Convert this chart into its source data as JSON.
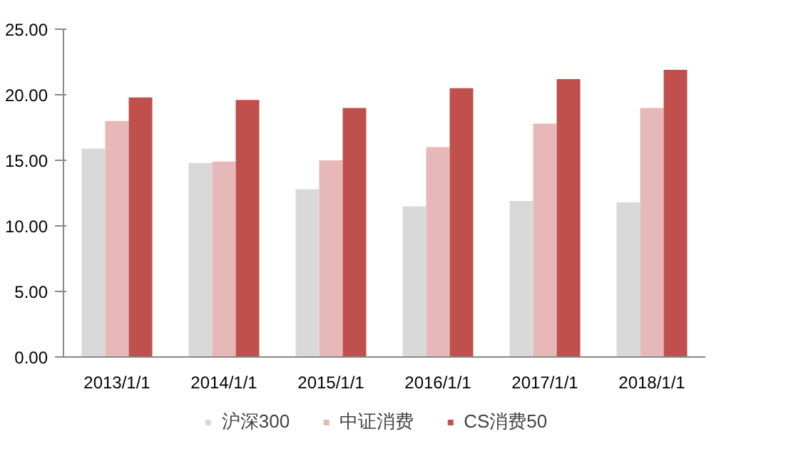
{
  "chart_data": {
    "type": "bar",
    "categories": [
      "2013/1/1",
      "2014/1/1",
      "2015/1/1",
      "2016/1/1",
      "2017/1/1",
      "2018/1/1"
    ],
    "series": [
      {
        "name": "沪深300",
        "color": "#d9d9d9",
        "values": [
          15.9,
          14.8,
          12.8,
          11.5,
          11.9,
          11.8
        ]
      },
      {
        "name": "中证消费",
        "color": "#e6b9b8",
        "values": [
          18.0,
          14.9,
          15.0,
          16.0,
          17.8,
          19.0
        ]
      },
      {
        "name": "CS消费50",
        "color": "#c0504d",
        "values": [
          19.8,
          19.6,
          19.0,
          20.5,
          21.2,
          21.9
        ]
      }
    ],
    "ylim": [
      0,
      25
    ],
    "yticks": [
      {
        "value": 0,
        "label": "0.00"
      },
      {
        "value": 5,
        "label": "5.00"
      },
      {
        "value": 10,
        "label": "10.00"
      },
      {
        "value": 15,
        "label": "15.00"
      },
      {
        "value": 20,
        "label": "20.00"
      },
      {
        "value": 25,
        "label": "25.00"
      }
    ],
    "grid": false,
    "legend": "bottom"
  }
}
